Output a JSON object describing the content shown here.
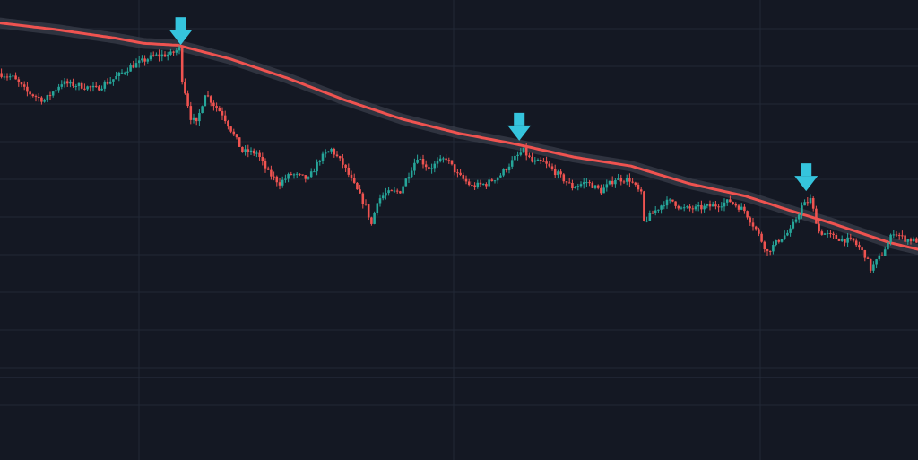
{
  "chart_data": {
    "type": "candlestick",
    "title": "",
    "xlabel": "",
    "ylabel": "",
    "x_range": [
      0,
      320
    ],
    "ylim": [
      0,
      100
    ],
    "grid": true,
    "legend": "none",
    "colors": {
      "background": "#141823",
      "grid": "#222836",
      "up": "#26a69a",
      "down": "#ef5350",
      "moving_average": "#ef5350",
      "moving_average_glow": "#3a3f4b",
      "marker": "#35c4dd"
    },
    "moving_average": [
      [
        0,
        93.9
      ],
      [
        20,
        92.1
      ],
      [
        40,
        89.9
      ],
      [
        50,
        88.5
      ],
      [
        62,
        88.0
      ],
      [
        80,
        84.4
      ],
      [
        100,
        79.3
      ],
      [
        120,
        73.5
      ],
      [
        140,
        68.4
      ],
      [
        160,
        64.6
      ],
      [
        180,
        61.7
      ],
      [
        200,
        58.3
      ],
      [
        220,
        55.9
      ],
      [
        240,
        51.3
      ],
      [
        260,
        47.9
      ],
      [
        275,
        44.2
      ],
      [
        290,
        40.7
      ],
      [
        310,
        35.6
      ],
      [
        320,
        33.8
      ]
    ],
    "price_path": [
      [
        0,
        80.6
      ],
      [
        5,
        79.4
      ],
      [
        10,
        75.5
      ],
      [
        16,
        73.3
      ],
      [
        22,
        78.0
      ],
      [
        28,
        77.3
      ],
      [
        34,
        76.4
      ],
      [
        40,
        79.0
      ],
      [
        46,
        82.3
      ],
      [
        54,
        85.1
      ],
      [
        60,
        85.6
      ],
      [
        63,
        87.1
      ],
      [
        64,
        79.0
      ],
      [
        66,
        72.3
      ],
      [
        67,
        68.8
      ],
      [
        69,
        67.1
      ],
      [
        72,
        75.3
      ],
      [
        75,
        72.3
      ],
      [
        78,
        69.8
      ],
      [
        82,
        64.2
      ],
      [
        85,
        59.8
      ],
      [
        90,
        59.4
      ],
      [
        94,
        54.1
      ],
      [
        98,
        51.4
      ],
      [
        102,
        53.8
      ],
      [
        108,
        52.4
      ],
      [
        112,
        57.8
      ],
      [
        116,
        60.3
      ],
      [
        120,
        56.4
      ],
      [
        124,
        50.8
      ],
      [
        128,
        45.1
      ],
      [
        130,
        40.4
      ],
      [
        132,
        46.8
      ],
      [
        135,
        48.6
      ],
      [
        140,
        49.3
      ],
      [
        146,
        58.4
      ],
      [
        150,
        55.3
      ],
      [
        156,
        58.1
      ],
      [
        160,
        53.6
      ],
      [
        165,
        50.5
      ],
      [
        170,
        51.2
      ],
      [
        175,
        53.6
      ],
      [
        180,
        58.0
      ],
      [
        183,
        60.0
      ],
      [
        186,
        57.0
      ],
      [
        190,
        56.8
      ],
      [
        195,
        53.7
      ],
      [
        200,
        50.3
      ],
      [
        205,
        51.7
      ],
      [
        210,
        49.3
      ],
      [
        215,
        52.5
      ],
      [
        220,
        52.3
      ],
      [
        224,
        48.4
      ],
      [
        225,
        41.1
      ],
      [
        228,
        43.4
      ],
      [
        232,
        46.2
      ],
      [
        235,
        46.6
      ],
      [
        238,
        44.6
      ],
      [
        243,
        44.6
      ],
      [
        250,
        45.5
      ],
      [
        255,
        46.6
      ],
      [
        260,
        44.1
      ],
      [
        264,
        39.1
      ],
      [
        268,
        33.1
      ],
      [
        272,
        36.3
      ],
      [
        276,
        38.7
      ],
      [
        280,
        45.2
      ],
      [
        283,
        47.0
      ],
      [
        286,
        38.5
      ],
      [
        292,
        36.8
      ],
      [
        298,
        35.9
      ],
      [
        302,
        32.3
      ],
      [
        304,
        28.6
      ],
      [
        308,
        32.6
      ],
      [
        312,
        38.5
      ],
      [
        316,
        36.5
      ],
      [
        320,
        36.1
      ]
    ],
    "markers": [
      {
        "x": 63,
        "y": 87.1,
        "type": "down-arrow"
      },
      {
        "x": 181,
        "y": 61.7,
        "type": "down-arrow"
      },
      {
        "x": 281,
        "y": 48.3,
        "type": "down-arrow"
      }
    ]
  }
}
